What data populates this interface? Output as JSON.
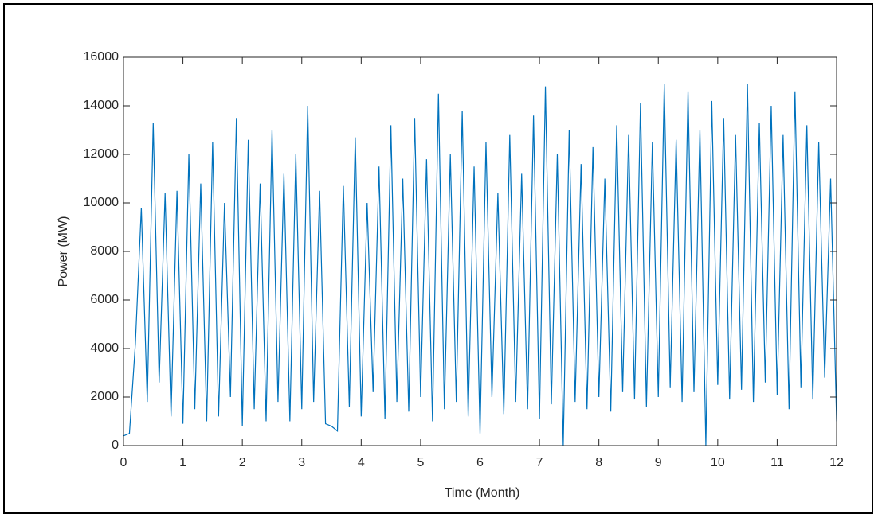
{
  "chart_data": {
    "type": "line",
    "xlabel": "Time (Month)",
    "ylabel": "Power (MW)",
    "x": [
      0,
      0.1,
      0.2,
      0.3,
      0.4,
      0.5,
      0.6,
      0.7,
      0.8,
      0.9,
      1,
      1.1,
      1.2,
      1.3,
      1.4,
      1.5,
      1.6,
      1.7,
      1.8,
      1.9,
      2,
      2.1,
      2.2,
      2.3,
      2.4,
      2.5,
      2.6,
      2.7,
      2.8,
      2.9,
      3,
      3.1,
      3.2,
      3.3,
      3.4,
      3.5,
      3.6,
      3.7,
      3.8,
      3.9,
      4,
      4.1,
      4.2,
      4.3,
      4.4,
      4.5,
      4.6,
      4.7,
      4.8,
      4.9,
      5,
      5.1,
      5.2,
      5.3,
      5.4,
      5.5,
      5.6,
      5.7,
      5.8,
      5.9,
      6,
      6.1,
      6.2,
      6.3,
      6.4,
      6.5,
      6.6,
      6.7,
      6.8,
      6.9,
      7,
      7.1,
      7.2,
      7.3,
      7.4,
      7.5,
      7.6,
      7.7,
      7.8,
      7.9,
      8,
      8.1,
      8.2,
      8.3,
      8.4,
      8.5,
      8.6,
      8.7,
      8.8,
      8.9,
      9,
      9.1,
      9.2,
      9.3,
      9.4,
      9.5,
      9.6,
      9.7,
      9.8,
      9.9,
      10,
      10.1,
      10.2,
      10.3,
      10.4,
      10.5,
      10.6,
      10.7,
      10.8,
      10.9,
      11,
      11.1,
      11.2,
      11.3,
      11.4,
      11.5,
      11.6,
      11.7,
      11.8,
      11.9,
      12
    ],
    "series": [
      {
        "color": "#0072bd",
        "values": [
          400,
          500,
          4200,
          9800,
          1800,
          13300,
          2600,
          10400,
          1200,
          10500,
          900,
          12000,
          1500,
          10800,
          1000,
          12500,
          1200,
          10000,
          2000,
          13500,
          800,
          12600,
          1500,
          10800,
          1000,
          13000,
          1800,
          11200,
          1000,
          12000,
          1500,
          14000,
          1800,
          10500,
          900,
          800,
          600,
          10700,
          1600,
          12700,
          1200,
          10000,
          2200,
          11500,
          1100,
          13200,
          1800,
          11000,
          1400,
          13500,
          2000,
          11800,
          1000,
          14500,
          1500,
          12000,
          1800,
          13800,
          1200,
          11500,
          500,
          12500,
          2000,
          10400,
          1300,
          12800,
          1800,
          11200,
          1500,
          13600,
          1100,
          14800,
          1700,
          12000,
          0,
          13000,
          1800,
          11600,
          1500,
          12300,
          2000,
          11000,
          1400,
          13200,
          2200,
          12800,
          1900,
          14100,
          1600,
          12500,
          2000,
          14900,
          2400,
          12600,
          1800,
          14600,
          2200,
          13000,
          0,
          14200,
          2500,
          13500,
          1900,
          12800,
          2300,
          14900,
          1800,
          13300,
          2600,
          14000,
          2100,
          12800,
          1500,
          14600,
          2400,
          13200,
          1900,
          12500,
          2800,
          11000,
          1000
        ]
      }
    ],
    "xlim": [
      0,
      12
    ],
    "xticks": [
      0,
      1,
      2,
      3,
      4,
      5,
      6,
      7,
      8,
      9,
      10,
      11,
      12
    ],
    "ylim": [
      0,
      16000
    ],
    "yticks": [
      0,
      2000,
      4000,
      6000,
      8000,
      10000,
      12000,
      14000,
      16000
    ]
  }
}
